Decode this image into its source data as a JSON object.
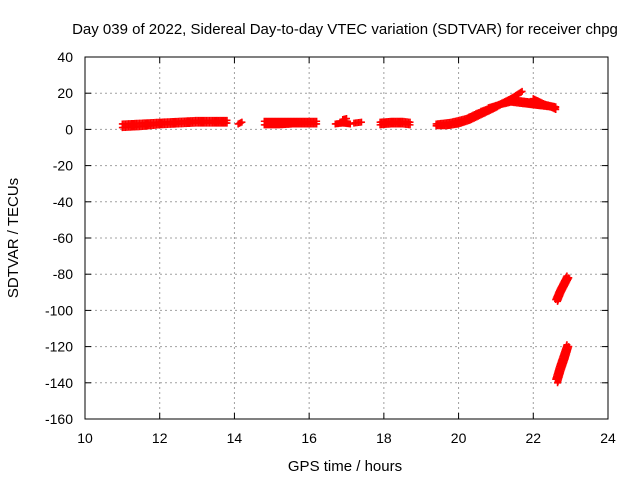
{
  "chart_data": {
    "type": "scatter",
    "title": "Day 039 of 2022, Sidereal Day-to-day VTEC variation (SDTVAR) for receiver chpg",
    "xlabel": "GPS time / hours",
    "ylabel": "SDTVAR / TECUs",
    "xlim": [
      10,
      24
    ],
    "ylim": [
      -160,
      40
    ],
    "xticks": [
      10,
      12,
      14,
      16,
      18,
      20,
      22,
      24
    ],
    "yticks": [
      -160,
      -140,
      -120,
      -100,
      -80,
      -60,
      -40,
      -20,
      0,
      20,
      40
    ],
    "grid": true,
    "marker": "plus",
    "color": "#ff0000",
    "segments": [
      {
        "x": [
          11.0,
          11.5,
          12.0,
          12.5,
          13.0,
          13.5,
          13.8
        ],
        "y": [
          1,
          1.5,
          2.5,
          3,
          3.5,
          3.5,
          3.5
        ]
      },
      {
        "x": [
          11.0,
          11.5,
          12.0,
          12.5,
          13.0,
          13.5,
          13.8
        ],
        "y": [
          3,
          3.5,
          4,
          4.5,
          5,
          5,
          5
        ]
      },
      {
        "x": [
          14.1,
          14.2
        ],
        "y": [
          3,
          4
        ]
      },
      {
        "x": [
          14.8,
          15.2,
          15.6,
          16.0,
          16.2
        ],
        "y": [
          2.5,
          2.5,
          3,
          3,
          3
        ]
      },
      {
        "x": [
          14.8,
          15.2,
          15.6,
          16.0,
          16.2
        ],
        "y": [
          4.5,
          4.5,
          4.5,
          4.5,
          4.5
        ]
      },
      {
        "x": [
          16.7,
          16.9,
          17.1
        ],
        "y": [
          3,
          3.5,
          3
        ]
      },
      {
        "x": [
          16.9,
          17.0
        ],
        "y": [
          5.5,
          6
        ]
      },
      {
        "x": [
          17.2,
          17.4
        ],
        "y": [
          3.5,
          4
        ]
      },
      {
        "x": [
          17.9,
          18.2,
          18.5,
          18.7
        ],
        "y": [
          2.5,
          3,
          3,
          2.5
        ]
      },
      {
        "x": [
          17.9,
          18.2,
          18.5,
          18.7
        ],
        "y": [
          4,
          4.5,
          4.5,
          4
        ]
      },
      {
        "x": [
          19.4,
          19.7,
          20.0,
          20.3,
          20.6,
          21.0,
          21.4,
          21.7
        ],
        "y": [
          2,
          2,
          3,
          5,
          8,
          12,
          17,
          21
        ]
      },
      {
        "x": [
          19.4,
          19.8,
          20.2,
          20.5,
          20.8,
          21.2,
          21.6
        ],
        "y": [
          3,
          4,
          6,
          9,
          11,
          15,
          19
        ]
      },
      {
        "x": [
          20.6,
          21.0,
          21.4,
          21.8,
          22.2,
          22.6
        ],
        "y": [
          10,
          13,
          15,
          14,
          13,
          12
        ]
      },
      {
        "x": [
          20.8,
          21.2,
          21.6,
          22.0,
          22.4,
          22.6
        ],
        "y": [
          12,
          14.5,
          16,
          15,
          13.5,
          12.5
        ]
      },
      {
        "x": [
          22.0,
          22.2,
          22.4,
          22.6
        ],
        "y": [
          17,
          15,
          13,
          11
        ]
      },
      {
        "x": [
          22.65,
          22.75,
          22.85,
          22.95
        ],
        "y": [
          -95,
          -90,
          -86,
          -82
        ]
      },
      {
        "x": [
          22.6,
          22.7,
          22.8,
          22.9
        ],
        "y": [
          -94,
          -89,
          -85,
          -81
        ]
      },
      {
        "x": [
          22.65,
          22.75,
          22.85,
          22.95
        ],
        "y": [
          -140,
          -133,
          -127,
          -120
        ]
      },
      {
        "x": [
          22.6,
          22.7,
          22.8,
          22.9
        ],
        "y": [
          -138,
          -131,
          -125,
          -119
        ]
      }
    ]
  }
}
